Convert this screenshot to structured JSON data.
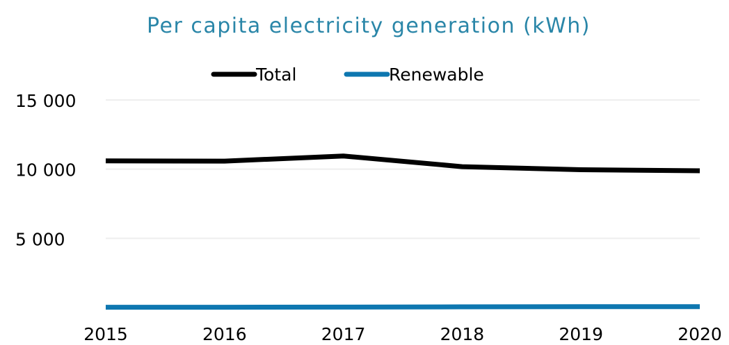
{
  "colors": {
    "title": "#2a86a8",
    "text": "#000000",
    "grid": "#eeeeee",
    "total": "#000000",
    "renewable": "#0e77b0"
  },
  "chart_data": {
    "type": "line",
    "title": "Per capita electricity generation (kWh)",
    "xlabel": "",
    "ylabel": "",
    "x": [
      "2015",
      "2016",
      "2017",
      "2018",
      "2019",
      "2020"
    ],
    "ylim": [
      0,
      15000
    ],
    "yticks": [
      5000,
      10000,
      15000
    ],
    "ytick_labels": [
      "5 000",
      "10 000",
      "15 000"
    ],
    "grid": true,
    "legend_position": "top-center",
    "series": [
      {
        "name": "Total",
        "color": "#000000",
        "values": [
          10600,
          10580,
          10950,
          10180,
          9960,
          9880
        ]
      },
      {
        "name": "Renewable",
        "color": "#0e77b0",
        "values": [
          20,
          20,
          30,
          50,
          60,
          60
        ]
      }
    ]
  }
}
